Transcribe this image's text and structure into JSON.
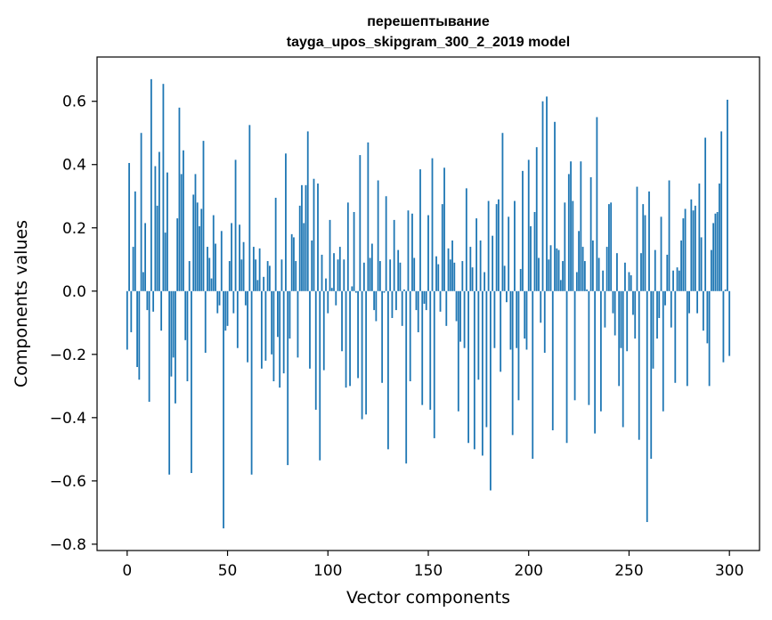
{
  "chart_data": {
    "type": "bar",
    "title": "перешептывание",
    "subtitle": "tayga_upos_skipgram_300_2_2019 model",
    "xlabel": "Vector components",
    "ylabel": "Components values",
    "xlim": [
      -15,
      315
    ],
    "ylim": [
      -0.82,
      0.74
    ],
    "xticks": [
      0,
      50,
      100,
      150,
      200,
      250,
      300
    ],
    "xtick_labels": [
      "0",
      "50",
      "100",
      "150",
      "200",
      "250",
      "300"
    ],
    "yticks": [
      -0.8,
      -0.6,
      -0.4,
      -0.2,
      0.0,
      0.2,
      0.4,
      0.6
    ],
    "ytick_labels": [
      "−0.8",
      "−0.6",
      "−0.4",
      "−0.2",
      "0.0",
      "0.2",
      "0.4",
      "0.6"
    ],
    "grid": false,
    "bar_color": "#1f77b4",
    "values": [
      -0.185,
      0.405,
      -0.13,
      0.14,
      0.315,
      -0.24,
      -0.28,
      0.5,
      0.06,
      0.215,
      -0.06,
      -0.35,
      0.67,
      -0.065,
      0.395,
      0.27,
      0.44,
      -0.125,
      0.655,
      0.185,
      0.375,
      -0.58,
      -0.27,
      -0.21,
      -0.355,
      0.23,
      0.58,
      0.37,
      0.445,
      -0.155,
      -0.285,
      0.095,
      -0.575,
      0.305,
      0.37,
      0.28,
      0.205,
      0.26,
      0.475,
      -0.195,
      0.14,
      0.105,
      0.04,
      0.24,
      0.15,
      -0.07,
      -0.045,
      0.19,
      -0.75,
      -0.125,
      -0.11,
      0.095,
      0.215,
      -0.07,
      0.415,
      -0.18,
      0.21,
      0.1,
      0.155,
      -0.045,
      -0.225,
      0.525,
      -0.58,
      0.14,
      0.1,
      0.035,
      0.135,
      -0.245,
      0.045,
      -0.22,
      0.095,
      0.08,
      -0.2,
      -0.285,
      0.295,
      -0.145,
      -0.305,
      0.1,
      -0.26,
      0.435,
      -0.55,
      -0.15,
      0.18,
      0.17,
      0.095,
      -0.21,
      0.27,
      0.335,
      0.215,
      0.335,
      0.505,
      -0.245,
      0.16,
      0.355,
      -0.375,
      0.34,
      -0.535,
      0.115,
      -0.25,
      0.04,
      -0.07,
      0.225,
      0.01,
      0.12,
      -0.045,
      0.1,
      0.14,
      -0.19,
      0.1,
      -0.305,
      0.28,
      -0.3,
      0.015,
      0.25,
      -0.005,
      -0.275,
      0.43,
      -0.405,
      0.09,
      -0.39,
      0.47,
      0.105,
      0.15,
      -0.06,
      -0.095,
      0.35,
      0.095,
      -0.29,
      -0.005,
      0.3,
      -0.5,
      0.1,
      -0.085,
      0.225,
      -0.06,
      0.13,
      0.09,
      -0.11,
      0.005,
      -0.545,
      0.255,
      -0.285,
      0.245,
      0.105,
      -0.06,
      -0.13,
      0.385,
      -0.36,
      -0.04,
      -0.06,
      0.24,
      -0.375,
      0.42,
      -0.465,
      0.11,
      0.085,
      -0.065,
      0.275,
      0.39,
      -0.11,
      0.135,
      0.1,
      0.16,
      0.09,
      -0.095,
      -0.38,
      -0.16,
      0.095,
      -0.18,
      0.325,
      -0.48,
      0.14,
      0.075,
      -0.5,
      0.23,
      -0.28,
      0.16,
      -0.52,
      0.06,
      -0.43,
      0.285,
      -0.63,
      0.175,
      -0.18,
      0.275,
      0.29,
      -0.255,
      0.5,
      0.08,
      -0.035,
      0.235,
      -0.185,
      -0.455,
      0.285,
      -0.18,
      -0.345,
      0.07,
      0.38,
      -0.15,
      -0.185,
      0.415,
      0.205,
      -0.53,
      0.25,
      0.455,
      0.105,
      -0.1,
      0.6,
      -0.195,
      0.615,
      0.1,
      0.145,
      -0.44,
      0.535,
      0.135,
      0.13,
      0.035,
      0.095,
      0.28,
      -0.48,
      0.37,
      0.41,
      0.285,
      -0.345,
      0.06,
      0.19,
      0.41,
      0.14,
      0.095,
      0.005,
      -0.36,
      0.36,
      0.16,
      -0.45,
      0.55,
      0.105,
      -0.38,
      0.065,
      -0.115,
      0.14,
      0.275,
      0.28,
      -0.07,
      -0.14,
      0.12,
      -0.3,
      -0.18,
      -0.43,
      0.09,
      -0.19,
      0.06,
      0.05,
      -0.075,
      -0.15,
      0.33,
      -0.47,
      0.12,
      0.275,
      0.24,
      -0.73,
      0.315,
      -0.53,
      -0.245,
      0.13,
      -0.15,
      -0.085,
      0.235,
      -0.38,
      -0.045,
      0.115,
      0.35,
      -0.115,
      0.065,
      -0.29,
      0.075,
      0.065,
      0.16,
      0.23,
      0.26,
      -0.3,
      -0.07,
      0.29,
      0.255,
      0.27,
      -0.07,
      0.34,
      0.17,
      -0.125,
      0.485,
      -0.165,
      -0.3,
      0.13,
      0.215,
      0.245,
      0.25,
      0.34,
      0.505,
      -0.225,
      0.005,
      0.605,
      -0.205
    ]
  }
}
